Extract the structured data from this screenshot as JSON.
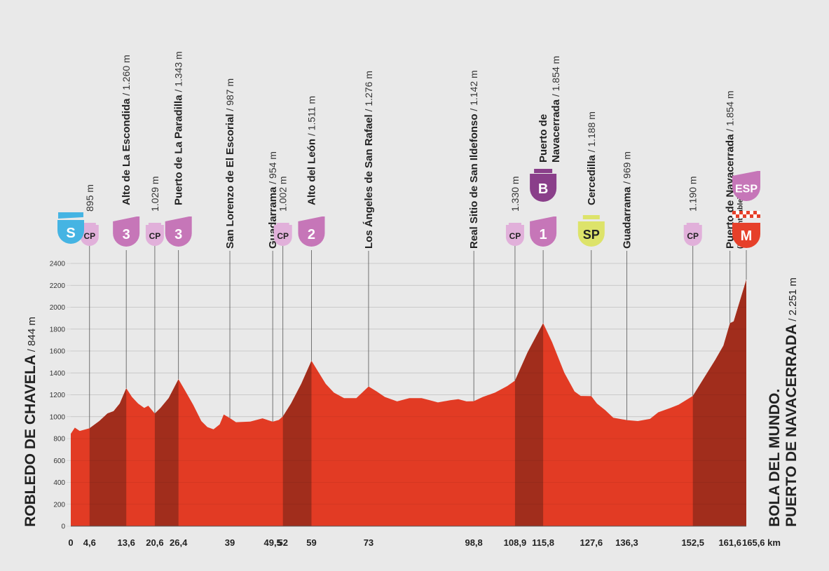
{
  "chart_data": {
    "type": "area",
    "title": "",
    "ylim": [
      0,
      2400
    ],
    "yticks": [
      0,
      200,
      400,
      600,
      800,
      1000,
      1200,
      1400,
      1600,
      1800,
      2000,
      2200,
      2400
    ],
    "xlim": [
      0,
      165.6
    ],
    "x_unit": "km",
    "start": {
      "name": "ROBLEDO DE CHAVELA",
      "altitude": "/ 844 m"
    },
    "finish": {
      "name_line1": "BOLA DEL MUNDO.",
      "name_line2": "PUERTO DE NAVACERRADA",
      "altitude": "/ 2.251 m"
    },
    "profile": [
      [
        0,
        844
      ],
      [
        1,
        900
      ],
      [
        2.2,
        870
      ],
      [
        4.6,
        895
      ],
      [
        7,
        960
      ],
      [
        9,
        1030
      ],
      [
        10.5,
        1050
      ],
      [
        12,
        1120
      ],
      [
        13.6,
        1260
      ],
      [
        15,
        1180
      ],
      [
        16.5,
        1120
      ],
      [
        18,
        1080
      ],
      [
        19,
        1100
      ],
      [
        20.6,
        1029
      ],
      [
        22,
        1080
      ],
      [
        24,
        1170
      ],
      [
        26.4,
        1343
      ],
      [
        28,
        1240
      ],
      [
        30,
        1110
      ],
      [
        32,
        960
      ],
      [
        33.5,
        905
      ],
      [
        35,
        885
      ],
      [
        36.5,
        930
      ],
      [
        37.5,
        1020
      ],
      [
        39,
        987
      ],
      [
        40.5,
        950
      ],
      [
        44,
        955
      ],
      [
        47,
        985
      ],
      [
        49.5,
        954
      ],
      [
        51,
        970
      ],
      [
        52,
        1002
      ],
      [
        54,
        1120
      ],
      [
        56.5,
        1300
      ],
      [
        59,
        1511
      ],
      [
        61,
        1390
      ],
      [
        62.5,
        1300
      ],
      [
        64.5,
        1220
      ],
      [
        67,
        1170
      ],
      [
        70,
        1170
      ],
      [
        73,
        1276
      ],
      [
        75,
        1230
      ],
      [
        77,
        1180
      ],
      [
        80,
        1140
      ],
      [
        83,
        1170
      ],
      [
        86,
        1170
      ],
      [
        88,
        1150
      ],
      [
        90,
        1130
      ],
      [
        93,
        1150
      ],
      [
        95,
        1160
      ],
      [
        97,
        1140
      ],
      [
        98.8,
        1142
      ],
      [
        101,
        1180
      ],
      [
        104,
        1220
      ],
      [
        107,
        1280
      ],
      [
        108.9,
        1330
      ],
      [
        112,
        1590
      ],
      [
        115.8,
        1854
      ],
      [
        118,
        1680
      ],
      [
        121,
        1400
      ],
      [
        123.5,
        1230
      ],
      [
        125,
        1190
      ],
      [
        127.6,
        1188
      ],
      [
        129,
        1120
      ],
      [
        131,
        1060
      ],
      [
        133,
        990
      ],
      [
        136.3,
        969
      ],
      [
        139,
        960
      ],
      [
        142,
        980
      ],
      [
        144,
        1040
      ],
      [
        147,
        1080
      ],
      [
        149,
        1110
      ],
      [
        152.5,
        1190
      ],
      [
        155,
        1340
      ],
      [
        158,
        1520
      ],
      [
        160,
        1650
      ],
      [
        161.6,
        1854
      ],
      [
        162.5,
        1870
      ],
      [
        165.6,
        2251
      ]
    ],
    "climb_sections": [
      [
        4.6,
        13.6
      ],
      [
        20.6,
        26.4
      ],
      [
        52,
        59
      ],
      [
        108.9,
        115.8
      ],
      [
        152.5,
        165.6
      ]
    ],
    "km_labels": [
      "0",
      "4,6",
      "13,6",
      "20,6",
      "26,4",
      "39",
      "49,5",
      "52",
      "59",
      "73",
      "98,8",
      "108,9",
      "115,8",
      "127,6",
      "136,3",
      "152,5",
      "161,6",
      "165,6 km"
    ],
    "km_values": [
      0,
      4.6,
      13.6,
      20.6,
      26.4,
      39,
      49.5,
      52,
      59,
      73,
      98.8,
      108.9,
      115.8,
      127.6,
      136.3,
      152.5,
      161.6,
      165.6
    ],
    "waypoints": [
      {
        "km": 4.6,
        "name": "",
        "alt": "895 m",
        "badge": "cp",
        "badge_label": "CP"
      },
      {
        "km": 13.6,
        "name": "Alto de La Escondida",
        "alt": " / 1.260 m",
        "badge": "cat",
        "badge_label": "3"
      },
      {
        "km": 20.6,
        "name": "",
        "alt": "1.029 m",
        "badge": "cp",
        "badge_label": "CP"
      },
      {
        "km": 26.4,
        "name": "Puerto de La Paradilla",
        "alt": " / 1.343 m",
        "badge": "cat",
        "badge_label": "3"
      },
      {
        "km": 39,
        "name": "San Lorenzo de El Escorial",
        "alt": " / 987 m",
        "badge": "",
        "badge_label": ""
      },
      {
        "km": 49.5,
        "name": "Guadarrama",
        "alt": " / 954 m",
        "badge": "",
        "badge_label": ""
      },
      {
        "km": 52,
        "name": "",
        "alt": "1.002 m",
        "badge": "cp",
        "badge_label": "CP"
      },
      {
        "km": 59,
        "name": "Alto del León",
        "alt": " / 1.511 m",
        "badge": "cat",
        "badge_label": "2"
      },
      {
        "km": 73,
        "name": "Los Ángeles de San Rafael",
        "alt": " / 1.276 m",
        "badge": "",
        "badge_label": ""
      },
      {
        "km": 98.8,
        "name": "Real Sitio de San Ildefonso",
        "alt": " / 1.142 m",
        "badge": "",
        "badge_label": ""
      },
      {
        "km": 108.9,
        "name": "",
        "alt": "1.330 m",
        "badge": "cp",
        "badge_label": "CP"
      },
      {
        "km": 115.8,
        "name": "Puerto de",
        "name2": "Navacerrada",
        "alt": " / 1.854 m",
        "badge": "cat",
        "badge_label": "1",
        "badge_top_label": "B"
      },
      {
        "km": 127.6,
        "name": "Cercedilla",
        "alt": " / 1.188 m",
        "badge": "sp",
        "badge_label": "SP"
      },
      {
        "km": 136.3,
        "name": "Guadarrama",
        "alt": " / 969 m",
        "badge": "",
        "badge_label": ""
      },
      {
        "km": 152.5,
        "name": "",
        "alt": "1.190 m",
        "badge": "cp",
        "badge_label": "CP"
      },
      {
        "km": 161.6,
        "name": "Puerto de Navacerrada",
        "alt": " / 1.854 m",
        "sub": "(No Puntuable)",
        "badge": "",
        "badge_label": ""
      },
      {
        "km": 165.6,
        "name": "",
        "alt": "",
        "badge": "finish",
        "badge_label": "M",
        "badge_top_label": "ESP"
      }
    ],
    "start_badge": "S",
    "colors": {
      "profile": "#e23b24",
      "climb": "#a12d1c",
      "category": "#c676b8",
      "cp": "#e1b0da",
      "sprint": "#dde36a",
      "start": "#45b4e3",
      "finish": "#e6402a",
      "background": "#e9e9e9"
    }
  }
}
